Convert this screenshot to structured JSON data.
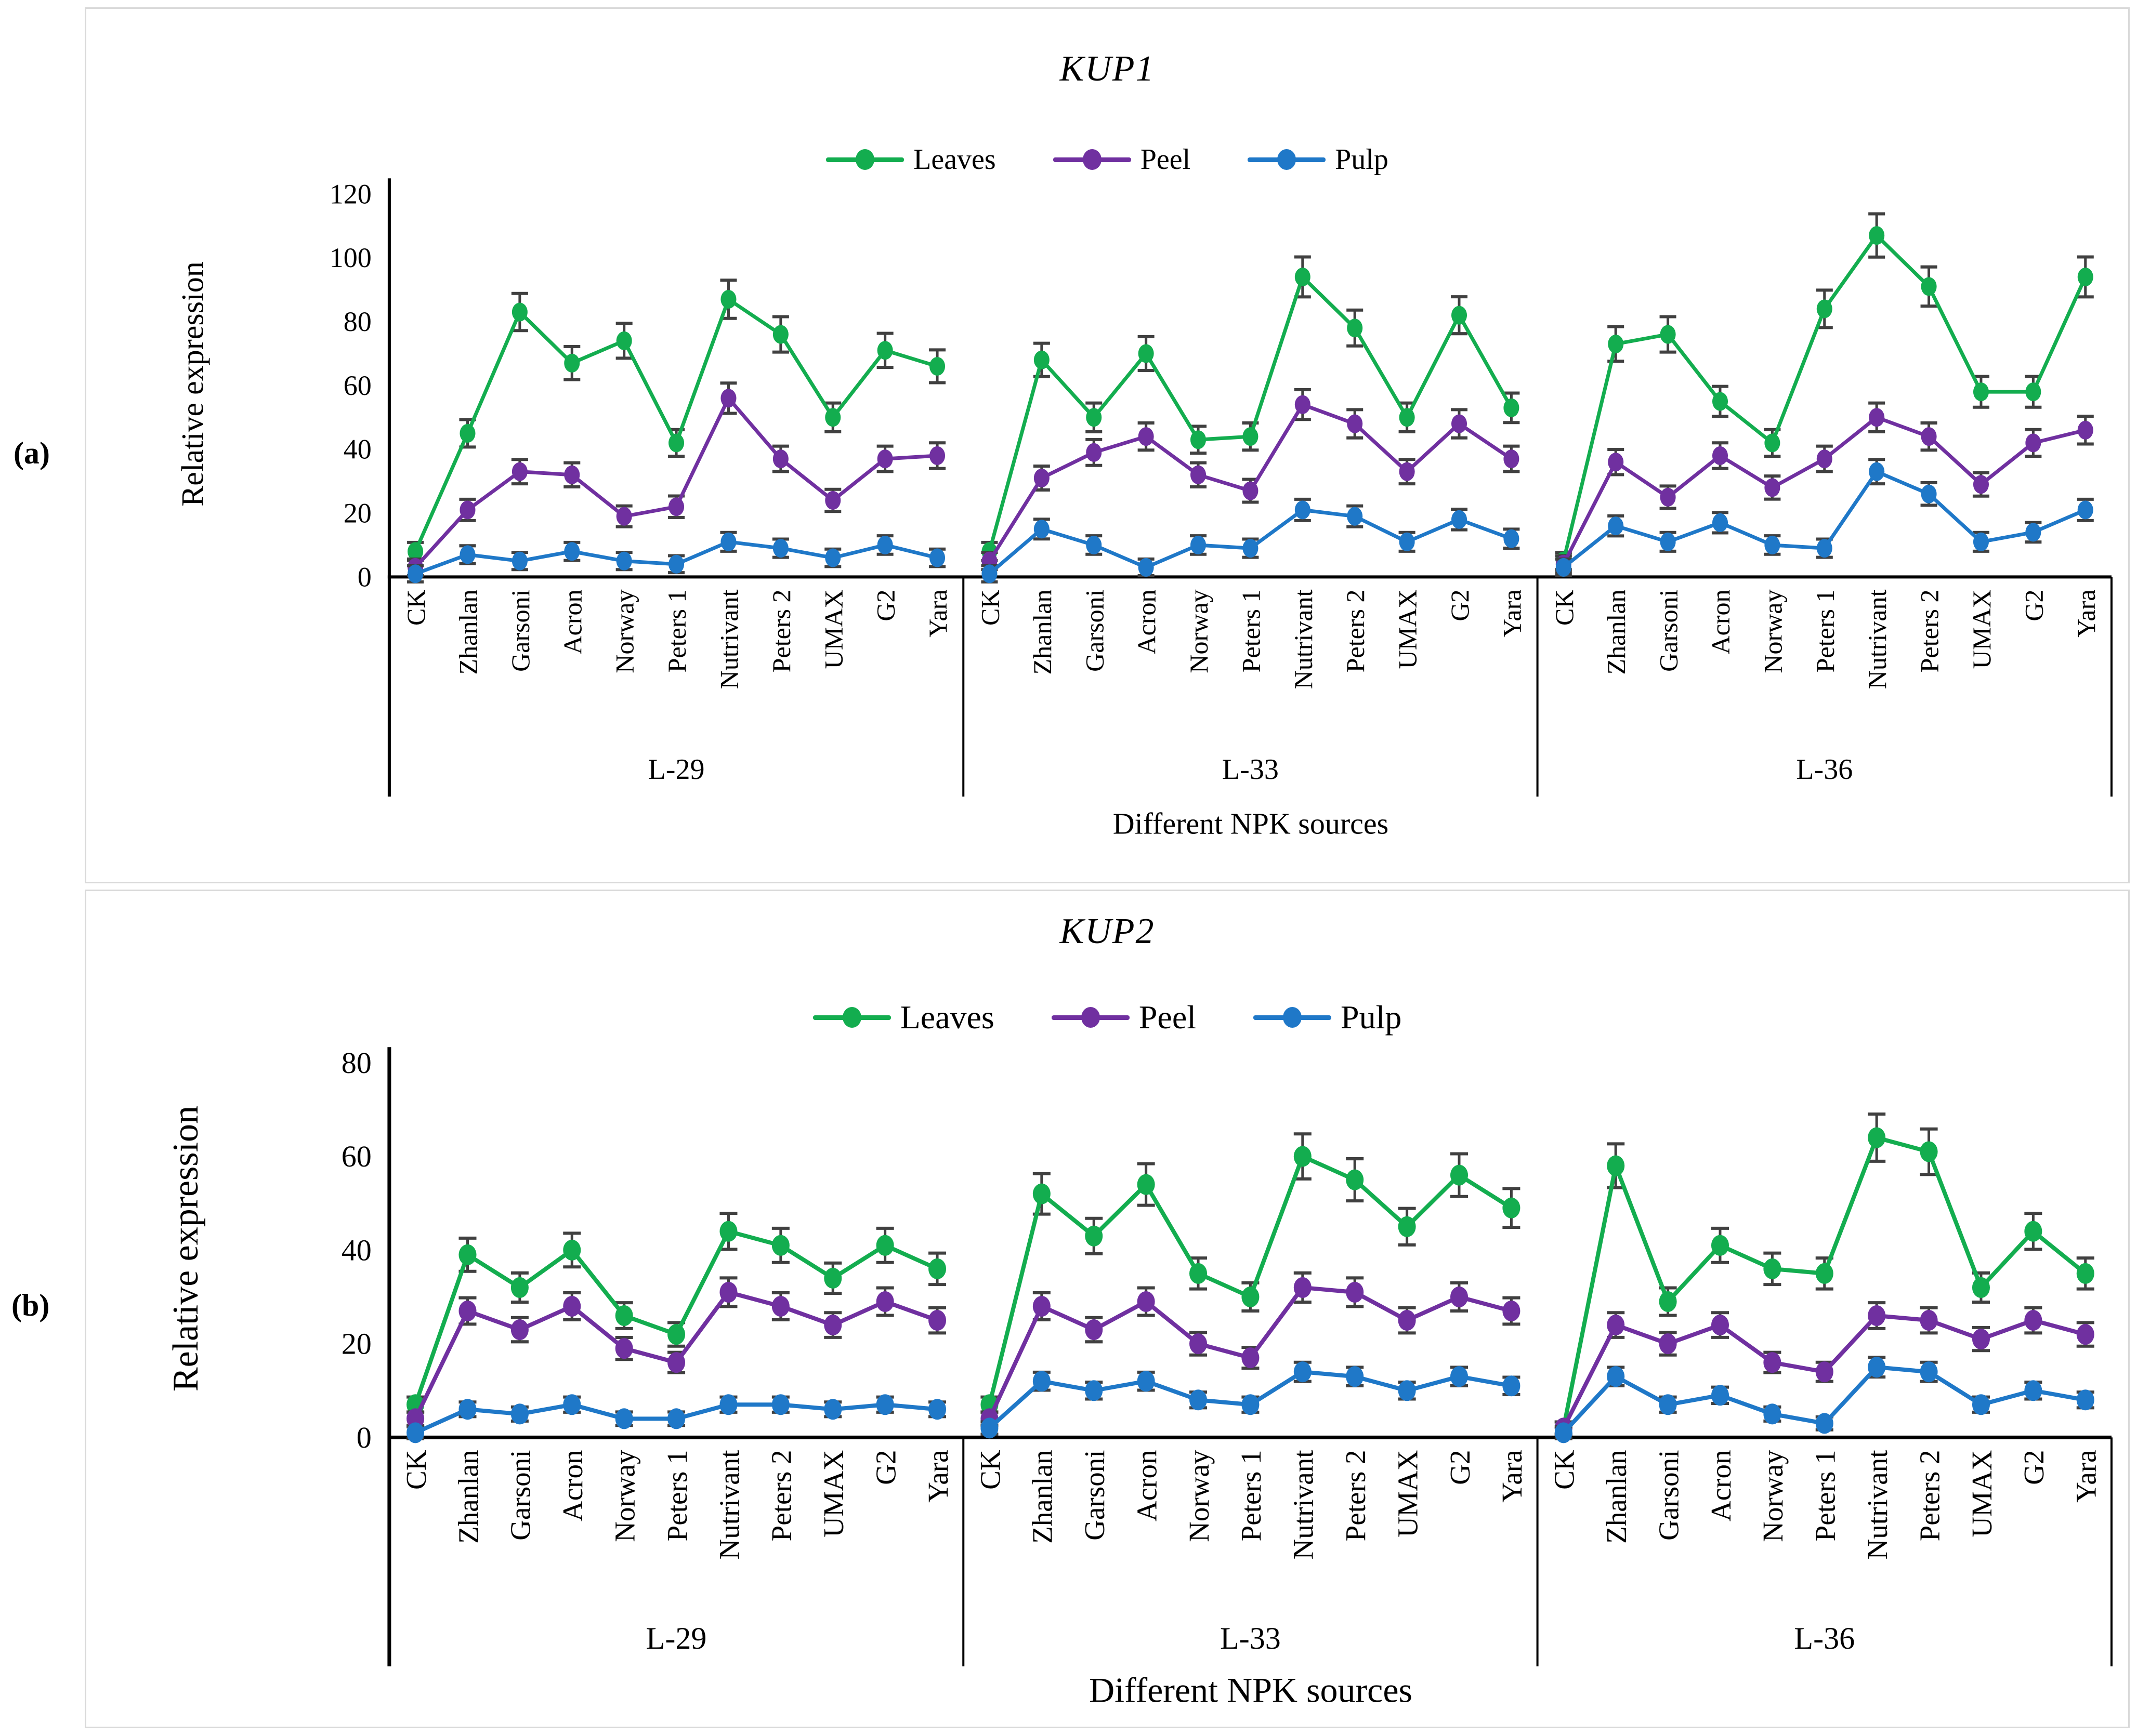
{
  "figure": {
    "panels": [
      {
        "letter": "(a)"
      },
      {
        "letter": "(b)"
      }
    ]
  },
  "colors": {
    "leaves": "#13AD4F",
    "peel": "#7030A0",
    "pulp": "#1F78C8",
    "error_bar": "#404040",
    "axis": "#000000",
    "panel_border": "#d9d9d9"
  },
  "chart_data": [
    {
      "type": "line",
      "panel": "a",
      "title": "KUP1",
      "ylabel": "Relative expression",
      "xlabel": "Different NPK sources",
      "ylim": [
        0,
        120
      ],
      "yticks": [
        0,
        20,
        40,
        60,
        80,
        100,
        120
      ],
      "legend_position": "top-center",
      "grid": false,
      "error_bars": true,
      "groups": [
        "L-29",
        "L-33",
        "L-36"
      ],
      "categories": [
        "CK",
        "Zhanlan",
        "Garsoni",
        "Acron",
        "Norway",
        "Peters 1",
        "Nutrivant",
        "Peters 2",
        "UMAX",
        "G2",
        "Yara"
      ],
      "error_color": "#404040",
      "series": [
        {
          "name": "Leaves",
          "color": "#13AD4F",
          "values": {
            "L-29": [
              8,
              45,
              83,
              67,
              74,
              42,
              87,
              76,
              50,
              71,
              66
            ],
            "L-33": [
              8,
              68,
              50,
              70,
              43,
              44,
              94,
              78,
              50,
              82,
              53
            ],
            "L-36": [
              5,
              73,
              76,
              55,
              42,
              84,
              107,
              91,
              58,
              58,
              94
            ]
          }
        },
        {
          "name": "Peel",
          "color": "#7030A0",
          "values": {
            "L-29": [
              3,
              21,
              33,
              32,
              19,
              22,
              56,
              37,
              24,
              37,
              38
            ],
            "L-33": [
              5,
              31,
              39,
              44,
              32,
              27,
              54,
              48,
              33,
              48,
              37
            ],
            "L-36": [
              4,
              36,
              25,
              38,
              28,
              37,
              50,
              44,
              29,
              42,
              46
            ]
          }
        },
        {
          "name": "Pulp",
          "color": "#1F78C8",
          "values": {
            "L-29": [
              1,
              7,
              5,
              8,
              5,
              4,
              11,
              9,
              6,
              10,
              6
            ],
            "L-33": [
              1,
              15,
              10,
              3,
              10,
              9,
              21,
              19,
              11,
              18,
              12
            ],
            "L-36": [
              3,
              16,
              11,
              17,
              10,
              9,
              33,
              26,
              11,
              14,
              21
            ]
          }
        }
      ]
    },
    {
      "type": "line",
      "panel": "b",
      "title": "KUP2",
      "ylabel": "Relative expression",
      "xlabel": "Different NPK sources",
      "ylim": [
        0,
        80
      ],
      "yticks": [
        0,
        20,
        40,
        60,
        80
      ],
      "legend_position": "top-center",
      "grid": false,
      "error_bars": true,
      "groups": [
        "L-29",
        "L-33",
        "L-36"
      ],
      "categories": [
        "CK",
        "Zhanlan",
        "Garsoni",
        "Acron",
        "Norway",
        "Peters 1",
        "Nutrivant",
        "Peters 2",
        "UMAX",
        "G2",
        "Yara"
      ],
      "error_color": "#404040",
      "series": [
        {
          "name": "Leaves",
          "color": "#13AD4F",
          "values": {
            "L-29": [
              7,
              39,
              32,
              40,
              26,
              22,
              44,
              41,
              34,
              41,
              36
            ],
            "L-33": [
              7,
              52,
              43,
              54,
              35,
              30,
              60,
              55,
              45,
              56,
              49
            ],
            "L-36": [
              2,
              58,
              29,
              41,
              36,
              35,
              64,
              61,
              32,
              44,
              35
            ]
          }
        },
        {
          "name": "Peel",
          "color": "#7030A0",
          "values": {
            "L-29": [
              4,
              27,
              23,
              28,
              19,
              16,
              31,
              28,
              24,
              29,
              25
            ],
            "L-33": [
              4,
              28,
              23,
              29,
              20,
              17,
              32,
              31,
              25,
              30,
              27
            ],
            "L-36": [
              2,
              24,
              20,
              24,
              16,
              14,
              26,
              25,
              21,
              25,
              22
            ]
          }
        },
        {
          "name": "Pulp",
          "color": "#1F78C8",
          "values": {
            "L-29": [
              1,
              6,
              5,
              7,
              4,
              4,
              7,
              7,
              6,
              7,
              6
            ],
            "L-33": [
              2,
              12,
              10,
              12,
              8,
              7,
              14,
              13,
              10,
              13,
              11
            ],
            "L-36": [
              1,
              13,
              7,
              9,
              5,
              3,
              15,
              14,
              7,
              10,
              8
            ]
          }
        }
      ]
    }
  ]
}
